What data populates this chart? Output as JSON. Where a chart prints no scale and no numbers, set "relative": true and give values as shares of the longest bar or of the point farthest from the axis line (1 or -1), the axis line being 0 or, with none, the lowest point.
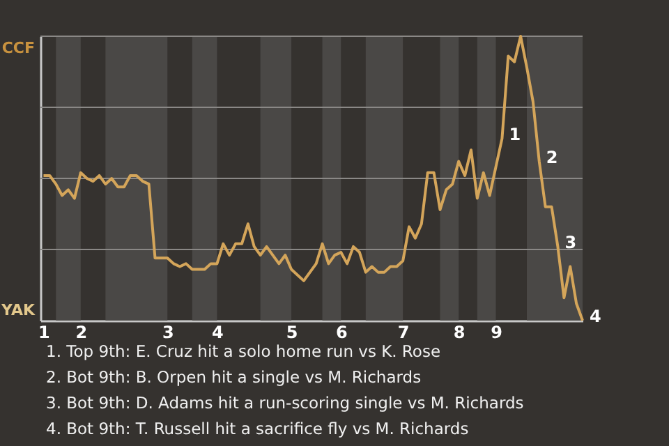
{
  "chart_data": {
    "type": "line",
    "relative": true,
    "categories": [
      "1",
      null,
      null,
      null,
      null,
      null,
      "2",
      null,
      null,
      null,
      null,
      null,
      null,
      null,
      null,
      null,
      null,
      null,
      null,
      null,
      "3",
      null,
      null,
      null,
      null,
      null,
      null,
      null,
      "4",
      null,
      null,
      null,
      null,
      null,
      null,
      null,
      null,
      null,
      null,
      null,
      "5",
      null,
      null,
      null,
      null,
      null,
      null,
      null,
      "6",
      null,
      null,
      null,
      null,
      null,
      null,
      null,
      null,
      null,
      "7",
      null,
      null,
      null,
      null,
      null,
      null,
      null,
      null,
      "8",
      null,
      null,
      null,
      null,
      null,
      "9",
      null,
      null,
      null,
      null,
      null,
      null,
      null,
      null,
      null,
      null,
      null,
      null,
      null,
      null
    ],
    "series": [
      {
        "color": "#d4a55a",
        "values": [
          0.51,
          0.51,
          0.48,
          0.44,
          0.46,
          0.43,
          0.52,
          0.5,
          0.49,
          0.51,
          0.48,
          0.5,
          0.47,
          0.47,
          0.51,
          0.51,
          0.49,
          0.48,
          0.22,
          0.22,
          0.22,
          0.2,
          0.19,
          0.2,
          0.18,
          0.18,
          0.18,
          0.2,
          0.2,
          0.27,
          0.23,
          0.27,
          0.27,
          0.34,
          0.26,
          0.23,
          0.26,
          0.23,
          0.2,
          0.23,
          0.18,
          0.16,
          0.14,
          0.17,
          0.2,
          0.27,
          0.2,
          0.23,
          0.24,
          0.2,
          0.26,
          0.24,
          0.17,
          0.19,
          0.17,
          0.17,
          0.19,
          0.19,
          0.21,
          0.33,
          0.29,
          0.34,
          0.52,
          0.52,
          0.39,
          0.46,
          0.48,
          0.56,
          0.51,
          0.6,
          0.43,
          0.52,
          0.44,
          0.54,
          0.64,
          0.93,
          0.91,
          1,
          0.89,
          0.77,
          0.56,
          0.4,
          0.4,
          0.26,
          0.08,
          0.19,
          0.06,
          0
        ]
      }
    ],
    "grid": "y",
    "marker": "none",
    "line_style": "solid",
    "annotations": [
      "1",
      "2",
      "3",
      "4",
      "CCF",
      "YAK",
      "1. Top 9th: E. Cruz hit a solo home run vs K. Rose",
      "2. Bot 9th: B. Orpen hit a single vs M. Richards",
      "3. Bot 9th: D. Adams hit a run-scoring single vs M. Richards",
      "4. Bot 9th: T. Russell hit a sacrifice fly vs M. Richards"
    ]
  }
}
